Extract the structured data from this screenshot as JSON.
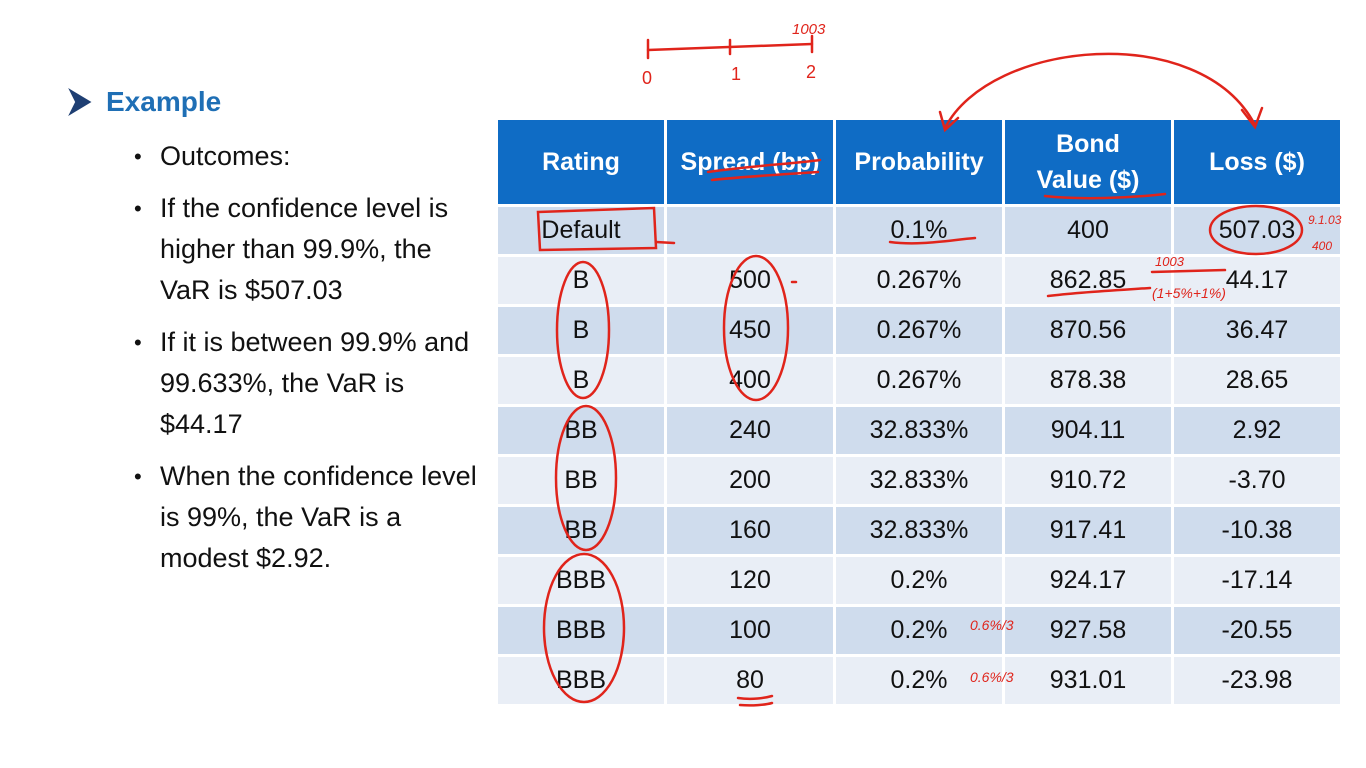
{
  "section": {
    "title": "Example"
  },
  "bullets": [
    "Outcomes:",
    "If the confidence level is higher than 99.9%, the VaR is $507.03",
    "If it is between 99.9% and 99.633%, the VaR is $44.17",
    "When the confidence level is 99%, the VaR is a modest $2.92."
  ],
  "table": {
    "headers": [
      "Rating",
      "Spread (bp)",
      "Probability",
      "Bond Value ($)",
      "Loss ($)"
    ],
    "rows": [
      [
        "Default",
        "",
        "0.1%",
        "400",
        "507.03"
      ],
      [
        "B",
        "500",
        "0.267%",
        "862.85",
        "44.17"
      ],
      [
        "B",
        "450",
        "0.267%",
        "870.56",
        "36.47"
      ],
      [
        "B",
        "400",
        "0.267%",
        "878.38",
        "28.65"
      ],
      [
        "BB",
        "240",
        "32.833%",
        "904.11",
        "2.92"
      ],
      [
        "BB",
        "200",
        "32.833%",
        "910.72",
        "-3.70"
      ],
      [
        "BB",
        "160",
        "32.833%",
        "917.41",
        "-10.38"
      ],
      [
        "BBB",
        "120",
        "0.2%",
        "924.17",
        "-17.14"
      ],
      [
        "BBB",
        "100",
        "0.2%",
        "927.58",
        "-20.55"
      ],
      [
        "BBB",
        "80",
        "0.2%",
        "931.01",
        "-23.98"
      ]
    ]
  },
  "annotations": {
    "timeline_labels": [
      "0",
      "1",
      "2"
    ],
    "timeline_top": "1003",
    "default_note": "400",
    "bond_note": "1003",
    "prob_note_1": "0.6%/3",
    "prob_note_2": "0.6%/3"
  },
  "colors": {
    "accent": "#1f6fb5",
    "header_bg": "#0f6cc5",
    "row_dark": "#cfdced",
    "row_light": "#e9eef6",
    "ink": "#e0241b"
  }
}
